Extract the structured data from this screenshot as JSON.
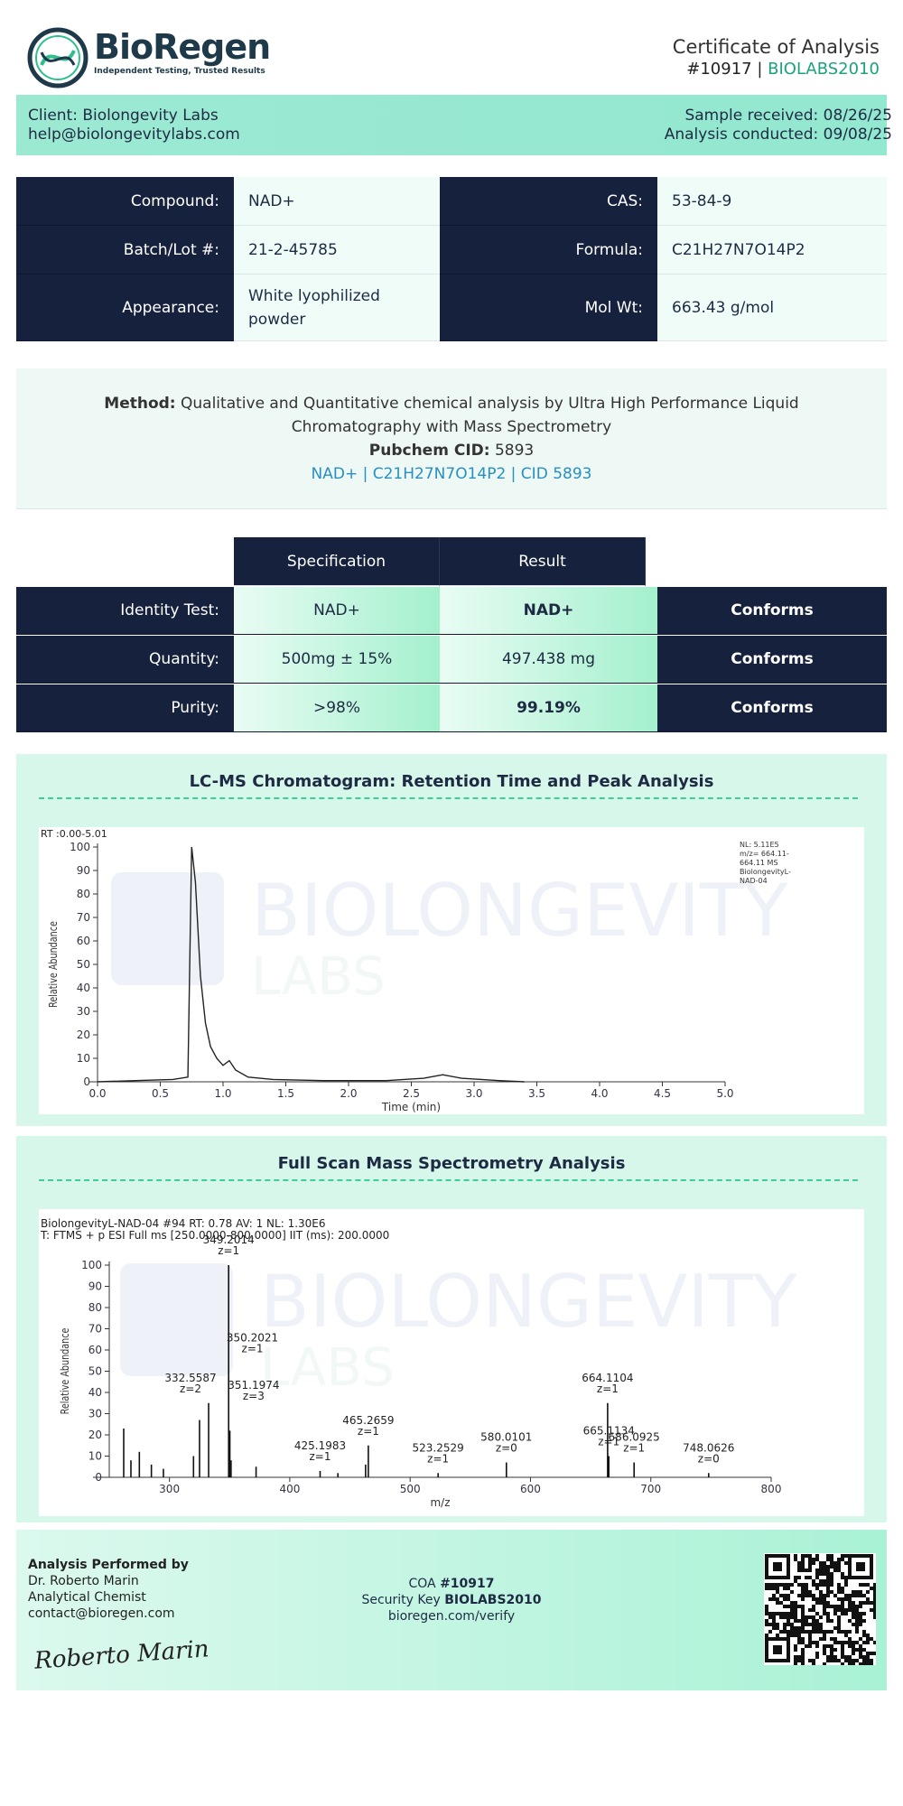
{
  "header": {
    "brand": "BioRegen",
    "tagline": "Independent Testing, Trusted Results",
    "title": "Certificate of Analysis",
    "number": "#10917",
    "separator": "|",
    "key": "BIOLABS2010"
  },
  "client": {
    "name": "Client: Biolongevity Labs",
    "email": "help@biolongevitylabs.com",
    "received": "Sample received: 08/26/25",
    "conducted": "Analysis conducted: 09/08/25"
  },
  "info": {
    "rows": [
      [
        "Compound:",
        "NAD+",
        "CAS:",
        "53-84-9"
      ],
      [
        "Batch/Lot #:",
        "21-2-45785",
        "Formula:",
        "C21H27N7O14P2"
      ],
      [
        "Appearance:",
        "White lyophilized powder",
        "Mol Wt:",
        "663.43 g/mol"
      ]
    ]
  },
  "method": {
    "label": "Method:",
    "text": "Qualitative and Quantitative chemical analysis by Ultra High Performance Liquid Chromatography with Mass Spectrometry",
    "pubchem_label": "Pubchem CID:",
    "pubchem_value": "5893",
    "link": "NAD+ | C21H27N7O14P2 | CID 5893"
  },
  "results": {
    "headers": [
      "Specification",
      "Result"
    ],
    "rows": [
      [
        "Identity Test:",
        "NAD+",
        "NAD+",
        "Conforms"
      ],
      [
        "Quantity:",
        "500mg ± 15%",
        "497.438 mg",
        "Conforms"
      ],
      [
        "Purity:",
        ">98%",
        "99.19%",
        "Conforms"
      ]
    ]
  },
  "chromatogram": {
    "title": "LC-MS Chromatogram: Retention Time and Peak Analysis",
    "range": "RT :0.00-5.01",
    "note": [
      "NL: 5.11E5",
      "m/z= 664.11-",
      "664.11 MS",
      "BiolongevityL-",
      "NAD-04"
    ],
    "watermark": [
      "BIOLONGEVITY",
      "LABS"
    ],
    "chart": {
      "type": "line",
      "xlabel": "Time (min)",
      "ylabel": "Relative Abundance",
      "color": "#222222",
      "x": [
        0,
        0.3,
        0.6,
        0.72,
        0.75,
        0.78,
        0.82,
        0.86,
        0.9,
        0.95,
        1.0,
        1.05,
        1.1,
        1.2,
        1.4,
        1.8,
        2.3,
        2.6,
        2.75,
        2.9,
        3.2,
        3.4
      ],
      "values": [
        0,
        0.5,
        1,
        2,
        100,
        85,
        45,
        25,
        15,
        10,
        7,
        9,
        5,
        2,
        1,
        0.5,
        0.5,
        1.5,
        3,
        1.5,
        0.5,
        0
      ],
      "xlim": [
        0,
        5
      ],
      "ylim": [
        0,
        100
      ],
      "xticks": [
        {
          "value": 0,
          "label": "0.0"
        },
        0.5,
        {
          "value": 1,
          "label": "1.0"
        },
        1.5,
        {
          "value": 2,
          "label": "2.0"
        },
        2.5,
        {
          "value": 3,
          "label": "3.0"
        },
        3.5,
        {
          "value": 4,
          "label": "4.0"
        },
        4.5,
        {
          "value": 5,
          "label": "5.0"
        }
      ],
      "yticks": [
        0,
        10,
        20,
        30,
        40,
        50,
        60,
        70,
        80,
        90,
        100
      ]
    }
  },
  "spectrum": {
    "title": "Full Scan Mass Spectrometry Analysis",
    "header": [
      "BiolongevityL-NAD-04 #94 RT: 0.78 AV: 1 NL: 1.30E6",
      "T: FTMS + p ESI Full ms [250.0000-800.0000] IIT (ms): 200.0000"
    ],
    "watermark": [
      "BIOLONGEVITY",
      "LABS"
    ],
    "chart": {
      "type": "stem",
      "xlabel": "m/z",
      "ylabel": "Relative Abundance",
      "color": "#111111",
      "x": [
        262,
        268,
        275,
        285,
        295,
        320,
        325,
        332.5587,
        349.2014,
        350.2021,
        351.1974,
        372,
        425.1983,
        440,
        463,
        465.2659,
        523.2529,
        580.0101,
        664.1104,
        665.1134,
        686.0925,
        748.0626
      ],
      "values": [
        23,
        8,
        12,
        6,
        4,
        10,
        27,
        35,
        100,
        22,
        8,
        5,
        3,
        2,
        6,
        15,
        2,
        7,
        35,
        10,
        7,
        2
      ],
      "z_labels": [
        null,
        null,
        null,
        null,
        null,
        null,
        null,
        "z=2",
        "z=1",
        "z=1",
        "z=3",
        null,
        "z=1",
        null,
        null,
        "z=1",
        "z=1",
        "z=0",
        "z=1",
        "z=1",
        "z=1",
        "z=0"
      ],
      "xlim": [
        250,
        800
      ],
      "ylim": [
        0,
        100
      ],
      "xticks": [
        300,
        400,
        500,
        600,
        700,
        800
      ],
      "yticks": [
        0,
        10,
        20,
        30,
        40,
        50,
        60,
        70,
        80,
        90,
        100
      ]
    }
  },
  "footer": {
    "performed_label": "Analysis Performed by",
    "name": "Dr. Roberto Marin",
    "role": "Analytical Chemist",
    "email": "contact@bioregen.com",
    "coa_label": "COA",
    "coa_number": "#10917",
    "key_label": "Security Key",
    "key": "BIOLABS2010",
    "verify": "bioregen.com/verify",
    "signature": "Roberto Marin"
  }
}
